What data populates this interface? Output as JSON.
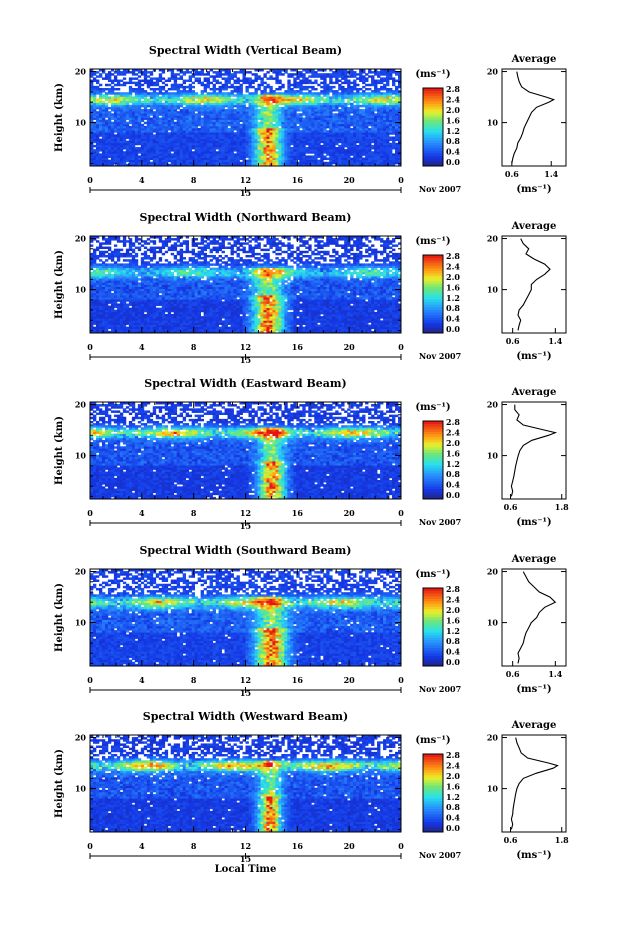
{
  "chart_data": [
    {
      "type": "heatmap",
      "title": "Spectral Width (Vertical Beam)",
      "xlabel": "",
      "ylabel": "Height (km)",
      "xlim": [
        0,
        24
      ],
      "ylim": [
        1.5,
        20.5
      ],
      "xticks": [
        "0",
        "4",
        "8",
        "12",
        "16",
        "20",
        "0"
      ],
      "yticks": [
        "10",
        "20"
      ],
      "date_marker": "15",
      "date_label": "Nov 2007",
      "colorbar": {
        "unit": "(ms⁻¹)",
        "ticks": [
          "0.0",
          "0.4",
          "0.8",
          "1.2",
          "1.6",
          "2.0",
          "2.4",
          "2.8"
        ],
        "range": [
          0,
          3.0
        ]
      },
      "features": {
        "jet_height_km": 14.5,
        "jet_value": 2.2,
        "convection_hours": [
          12.5,
          15.0
        ],
        "convection_value": 2.8,
        "background_value": 0.3
      },
      "average": {
        "title": "Average",
        "xlabel": "(ms⁻¹)",
        "xticks": [
          "0.6",
          "1.4"
        ],
        "xlim": [
          0.4,
          1.7
        ],
        "profile": [
          [
            2,
            0.6
          ],
          [
            3,
            0.62
          ],
          [
            4,
            0.65
          ],
          [
            5,
            0.7
          ],
          [
            6,
            0.72
          ],
          [
            7,
            0.78
          ],
          [
            8,
            0.82
          ],
          [
            9,
            0.85
          ],
          [
            10,
            0.9
          ],
          [
            11,
            0.95
          ],
          [
            12,
            1.0
          ],
          [
            13,
            1.1
          ],
          [
            14,
            1.35
          ],
          [
            14.5,
            1.45
          ],
          [
            15,
            1.3
          ],
          [
            16,
            0.95
          ],
          [
            17,
            0.8
          ],
          [
            18,
            0.75
          ],
          [
            19,
            0.72
          ],
          [
            20,
            0.7
          ]
        ]
      }
    },
    {
      "type": "heatmap",
      "title": "Spectral Width (Northward Beam)",
      "xlabel": "",
      "ylabel": "Height (km)",
      "xlim": [
        0,
        24
      ],
      "ylim": [
        1.5,
        20.5
      ],
      "xticks": [
        "0",
        "4",
        "8",
        "12",
        "16",
        "20",
        "0"
      ],
      "yticks": [
        "10",
        "20"
      ],
      "date_marker": "15",
      "date_label": "Nov 2007",
      "colorbar": {
        "unit": "(ms⁻¹)",
        "ticks": [
          "0.0",
          "0.4",
          "0.8",
          "1.2",
          "1.6",
          "2.0",
          "2.4",
          "2.8"
        ],
        "range": [
          0,
          3.0
        ]
      },
      "features": {
        "jet_height_km": 13.5,
        "jet_value": 1.6,
        "convection_hours": [
          12.3,
          15.2
        ],
        "convection_value": 2.8,
        "background_value": 0.25
      },
      "average": {
        "title": "Average",
        "xlabel": "(ms⁻¹)",
        "xticks": [
          "0.6",
          "1.4"
        ],
        "xlim": [
          0.4,
          1.6
        ],
        "profile": [
          [
            2,
            0.7
          ],
          [
            3,
            0.72
          ],
          [
            4,
            0.75
          ],
          [
            5,
            0.7
          ],
          [
            6,
            0.72
          ],
          [
            7,
            0.8
          ],
          [
            8,
            0.85
          ],
          [
            9,
            0.9
          ],
          [
            10,
            0.95
          ],
          [
            11,
            0.95
          ],
          [
            12,
            1.05
          ],
          [
            13,
            1.2
          ],
          [
            14,
            1.3
          ],
          [
            15,
            1.2
          ],
          [
            16,
            1.0
          ],
          [
            17,
            0.85
          ],
          [
            18,
            0.9
          ],
          [
            19,
            0.8
          ],
          [
            20,
            0.75
          ]
        ]
      }
    },
    {
      "type": "heatmap",
      "title": "Spectral Width (Eastward Beam)",
      "xlabel": "",
      "ylabel": "Height (km)",
      "xlim": [
        0,
        24
      ],
      "ylim": [
        1.5,
        20.5
      ],
      "xticks": [
        "0",
        "4",
        "8",
        "12",
        "16",
        "20",
        "0"
      ],
      "yticks": [
        "10",
        "20"
      ],
      "date_marker": "15",
      "date_label": "Nov 2007",
      "colorbar": {
        "unit": "(ms⁻¹)",
        "ticks": [
          "0.0",
          "0.4",
          "0.8",
          "1.2",
          "1.6",
          "2.0",
          "2.4",
          "2.8"
        ],
        "range": [
          0,
          3.0
        ]
      },
      "features": {
        "jet_height_km": 14.5,
        "jet_value": 2.4,
        "convection_hours": [
          12.8,
          15.3
        ],
        "convection_value": 2.8,
        "background_value": 0.25
      },
      "average": {
        "title": "Average",
        "xlabel": "(ms⁻¹)",
        "xticks": [
          "0.6",
          "1.8"
        ],
        "xlim": [
          0.4,
          1.9
        ],
        "profile": [
          [
            2,
            0.62
          ],
          [
            3,
            0.65
          ],
          [
            4,
            0.62
          ],
          [
            5,
            0.65
          ],
          [
            6,
            0.68
          ],
          [
            7,
            0.7
          ],
          [
            8,
            0.72
          ],
          [
            9,
            0.75
          ],
          [
            10,
            0.78
          ],
          [
            11,
            0.82
          ],
          [
            12,
            0.9
          ],
          [
            13,
            1.1
          ],
          [
            14,
            1.5
          ],
          [
            14.5,
            1.65
          ],
          [
            15,
            1.4
          ],
          [
            16,
            0.9
          ],
          [
            17,
            0.75
          ],
          [
            18,
            0.8
          ],
          [
            19,
            0.7
          ],
          [
            20,
            0.7
          ]
        ]
      }
    },
    {
      "type": "heatmap",
      "title": "Spectral Width (Southward Beam)",
      "xlabel": "",
      "ylabel": "Height (km)",
      "xlim": [
        0,
        24
      ],
      "ylim": [
        1.5,
        20.5
      ],
      "xticks": [
        "0",
        "4",
        "8",
        "12",
        "16",
        "20",
        "0"
      ],
      "yticks": [
        "10",
        "20"
      ],
      "date_marker": "15",
      "date_label": "Nov 2007",
      "colorbar": {
        "unit": "(ms⁻¹)",
        "ticks": [
          "0.0",
          "0.4",
          "0.8",
          "1.2",
          "1.6",
          "2.0",
          "2.4",
          "2.8"
        ],
        "range": [
          0,
          3.0
        ]
      },
      "features": {
        "jet_height_km": 14.0,
        "jet_value": 2.2,
        "convection_hours": [
          12.5,
          15.5
        ],
        "convection_value": 2.8,
        "background_value": 0.3
      },
      "average": {
        "title": "Average",
        "xlabel": "(ms⁻¹)",
        "xticks": [
          "0.6",
          "1.4"
        ],
        "xlim": [
          0.4,
          1.6
        ],
        "profile": [
          [
            2,
            0.7
          ],
          [
            3,
            0.72
          ],
          [
            4,
            0.7
          ],
          [
            5,
            0.75
          ],
          [
            6,
            0.8
          ],
          [
            7,
            0.82
          ],
          [
            8,
            0.85
          ],
          [
            9,
            0.9
          ],
          [
            10,
            0.95
          ],
          [
            11,
            1.05
          ],
          [
            12,
            1.1
          ],
          [
            13,
            1.2
          ],
          [
            14,
            1.4
          ],
          [
            15,
            1.3
          ],
          [
            16,
            1.1
          ],
          [
            17,
            1.0
          ],
          [
            18,
            0.9
          ],
          [
            19,
            0.85
          ],
          [
            20,
            0.8
          ]
        ]
      }
    },
    {
      "type": "heatmap",
      "title": "Spectral Width (Westward Beam)",
      "xlabel": "Local Time",
      "ylabel": "Height (km)",
      "xlim": [
        0,
        24
      ],
      "ylim": [
        1.5,
        20.5
      ],
      "xticks": [
        "0",
        "4",
        "8",
        "12",
        "16",
        "20",
        "0"
      ],
      "yticks": [
        "10",
        "20"
      ],
      "date_marker": "15",
      "date_label": "Nov 2007",
      "colorbar": {
        "unit": "(ms⁻¹)",
        "ticks": [
          "0.0",
          "0.4",
          "0.8",
          "1.2",
          "1.6",
          "2.0",
          "2.4",
          "2.8"
        ],
        "range": [
          0,
          3.0
        ]
      },
      "features": {
        "jet_height_km": 14.5,
        "jet_value": 2.5,
        "convection_hours": [
          12.8,
          15.0
        ],
        "convection_value": 2.8,
        "background_value": 0.25
      },
      "average": {
        "title": "Average",
        "xlabel": "(ms⁻¹)",
        "xticks": [
          "0.6",
          "1.8"
        ],
        "xlim": [
          0.4,
          1.9
        ],
        "profile": [
          [
            2,
            0.62
          ],
          [
            3,
            0.65
          ],
          [
            4,
            0.62
          ],
          [
            5,
            0.65
          ],
          [
            6,
            0.66
          ],
          [
            7,
            0.68
          ],
          [
            8,
            0.7
          ],
          [
            9,
            0.72
          ],
          [
            10,
            0.75
          ],
          [
            11,
            0.8
          ],
          [
            12,
            0.9
          ],
          [
            13,
            1.2
          ],
          [
            14,
            1.6
          ],
          [
            14.5,
            1.7
          ],
          [
            15,
            1.5
          ],
          [
            16,
            1.0
          ],
          [
            17,
            0.85
          ],
          [
            18,
            0.8
          ],
          [
            19,
            0.75
          ],
          [
            20,
            0.72
          ]
        ]
      }
    }
  ]
}
